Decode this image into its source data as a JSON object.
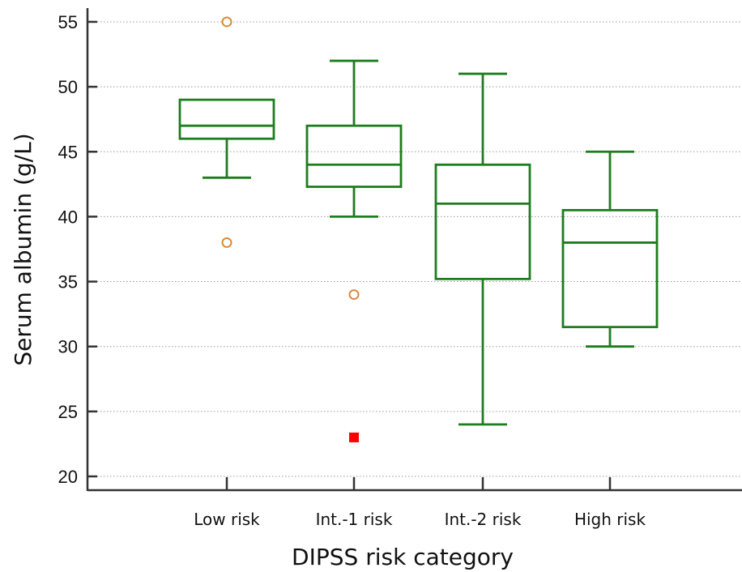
{
  "chart_data": {
    "type": "box",
    "title": "",
    "xlabel": "DIPSS risk category",
    "ylabel": "Serum albumin (g/L)",
    "ylim": [
      19,
      56
    ],
    "yticks": [
      20,
      25,
      30,
      35,
      40,
      45,
      50,
      55
    ],
    "grid": "horizontal dotted",
    "categories": [
      "Low risk",
      "Int.-1 risk",
      "Int.-2 risk",
      "High risk"
    ],
    "boxes": [
      {
        "category": "Low risk",
        "whisker_low": 43,
        "q1": 46,
        "median": 47,
        "q3": 49,
        "whisker_high": 49,
        "outliers": [
          55,
          38
        ],
        "far_outliers": []
      },
      {
        "category": "Int.-1 risk",
        "whisker_low": 40,
        "q1": 42.3,
        "median": 44,
        "q3": 47,
        "whisker_high": 52,
        "outliers": [
          34
        ],
        "far_outliers": [
          23
        ]
      },
      {
        "category": "Int.-2 risk",
        "whisker_low": 24,
        "q1": 35.2,
        "median": 41,
        "q3": 44,
        "whisker_high": 51,
        "outliers": [],
        "far_outliers": []
      },
      {
        "category": "High risk",
        "whisker_low": 30,
        "q1": 31.5,
        "median": 38,
        "q3": 40.5,
        "whisker_high": 45,
        "outliers": [],
        "far_outliers": []
      }
    ],
    "colors": {
      "box": "#1e7d1e",
      "outlier": "#d9893b",
      "far_outlier": "#ff0000",
      "grid": "#9a9a9a",
      "axis": "#333333"
    }
  }
}
